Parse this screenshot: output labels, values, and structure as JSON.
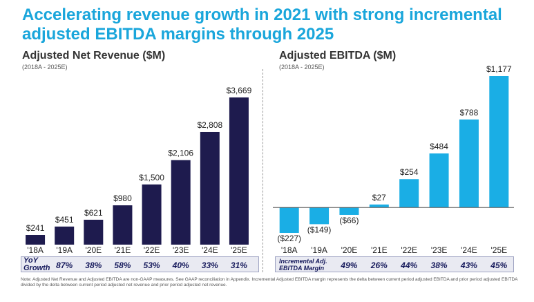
{
  "title": "Accelerating revenue growth in 2021 with strong incremental adjusted EBITDA margins through 2025",
  "colors": {
    "title": "#1aa6db",
    "revenue_bar": "#1e1b4e",
    "ebitda_bar": "#1aaee5",
    "strip_text": "#161a5c"
  },
  "left": {
    "heading": "Adjusted Net Revenue ($M)",
    "subheading": "(2018A - 2025E)",
    "strip_label": "YoY Growth",
    "strip_values": [
      "87%",
      "38%",
      "58%",
      "53%",
      "40%",
      "33%",
      "31%"
    ]
  },
  "right": {
    "heading": "Adjusted EBITDA ($M)",
    "subheading": "(2018A - 2025E)",
    "strip_label": "Incremental Adj. EBITDA Margin",
    "strip_values": [
      "49%",
      "26%",
      "44%",
      "38%",
      "43%",
      "45%"
    ]
  },
  "chart_data": [
    {
      "type": "bar",
      "title": "Adjusted Net Revenue ($M)",
      "subtitle": "(2018A - 2025E)",
      "categories": [
        "'18A",
        "'19A",
        "'20E",
        "'21E",
        "'22E",
        "'23E",
        "'24E",
        "'25E"
      ],
      "values": [
        241,
        451,
        621,
        980,
        1500,
        2106,
        2808,
        3669
      ],
      "data_labels": [
        "$241",
        "$451",
        "$621",
        "$980",
        "$1,500",
        "$2,106",
        "$2,808",
        "$3,669"
      ],
      "ylim": [
        0,
        3669
      ],
      "grid": false
    },
    {
      "type": "bar",
      "title": "Adjusted EBITDA ($M)",
      "subtitle": "(2018A - 2025E)",
      "categories": [
        "'18A",
        "'19A",
        "'20E",
        "'21E",
        "'22E",
        "'23E",
        "'24E",
        "'25E"
      ],
      "values": [
        -227,
        -149,
        -66,
        27,
        254,
        484,
        788,
        1177
      ],
      "data_labels": [
        "($227)",
        "($149)",
        "($66)",
        "$27",
        "$254",
        "$484",
        "$788",
        "$1,177"
      ],
      "ylim": [
        -227,
        1177
      ],
      "grid": false
    }
  ],
  "note": "Note: Adjusted Net Revenue and Adjusted EBITDA are non-GAAP measures. See GAAP reconciliation in Appendix. Incremental Adjusted EBITDA margin represents the delta between current period adjusted EBITDA and prior period adjusted EBITDA divided by the delta between current period adjusted net revenue and prior period adjusted net revenue."
}
